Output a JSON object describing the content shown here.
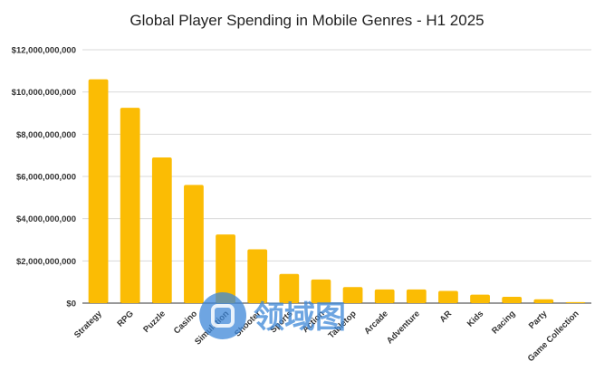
{
  "chart_data": {
    "type": "bar",
    "title": "Global Player Spending in Mobile Genres - H1 2025",
    "xlabel": "",
    "ylabel": "",
    "categories": [
      "Strategy",
      "RPG",
      "Puzzle",
      "Casino",
      "Simulation",
      "Shooter",
      "Sports",
      "Action",
      "Tabletop",
      "Arcade",
      "Adventure",
      "AR",
      "Kids",
      "Racing",
      "Party",
      "Game Collection"
    ],
    "values": [
      10600000000,
      9250000000,
      6900000000,
      5600000000,
      3250000000,
      2550000000,
      1380000000,
      1120000000,
      760000000,
      650000000,
      650000000,
      580000000,
      400000000,
      300000000,
      180000000,
      50000000
    ],
    "ylim": [
      0,
      12000000000
    ],
    "yticks": [
      0,
      2000000000,
      4000000000,
      6000000000,
      8000000000,
      10000000000,
      12000000000
    ],
    "ytick_labels": [
      "$0",
      "$2,000,000,000",
      "$4,000,000,000",
      "$6,000,000,000",
      "$8,000,000,000",
      "$10,000,000,000",
      "$12,000,000,000"
    ],
    "grid": true,
    "legend": "none",
    "bar_color": "#fbbc04",
    "grid_color": "#d9d9d9"
  },
  "watermark": {
    "text": "领域图",
    "color": "#3d87d8"
  }
}
